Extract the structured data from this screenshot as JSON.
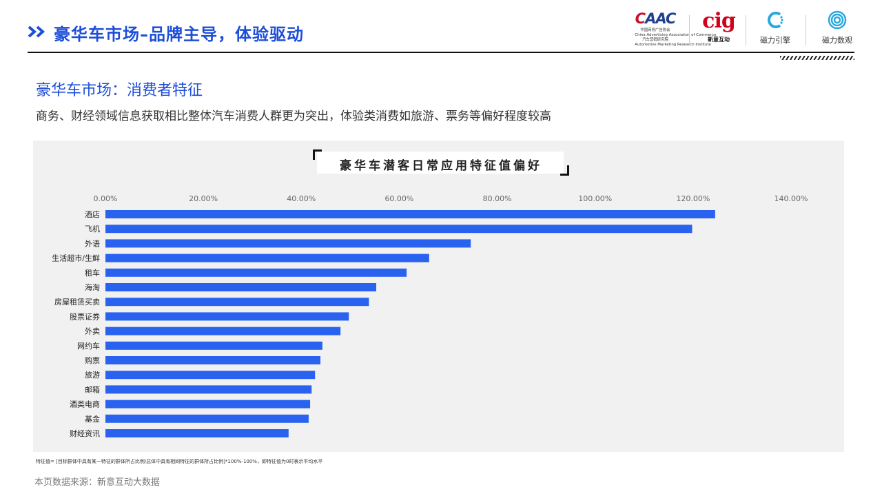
{
  "header": {
    "title": "豪华车市场–品牌主导，体验驱动",
    "logos": {
      "caac": {
        "word_c": "C",
        "word_a": "AAC",
        "line1": "中国商务广告协会",
        "line2": "China Advertising Association of Commerce",
        "line3": "汽车营销研究院",
        "line4": "Automotive Marketing Research Institute"
      },
      "cig": {
        "word": "cig",
        "label": "新意互动"
      },
      "ciyin": {
        "label": "磁力引擎",
        "icon": "ciyin-logo-icon"
      },
      "cishu": {
        "label": "磁力数观",
        "icon": "cishu-logo-icon"
      }
    }
  },
  "section": {
    "title": "豪华车市场：消费者特征",
    "subtitle": "商务、财经领域信息获取相比整体汽车消费人群更为突出，体验类消费如旅游、票务等偏好程度较高"
  },
  "chart_data": {
    "type": "bar",
    "orientation": "horizontal",
    "title": "豪华车潜客日常应用特征值偏好",
    "categories": [
      "酒店",
      "飞机",
      "外语",
      "生活超市/生鲜",
      "租车",
      "海淘",
      "房屋租赁买卖",
      "股票证券",
      "外卖",
      "网约车",
      "购票",
      "旅游",
      "邮箱",
      "酒类电商",
      "基金",
      "财经资讯"
    ],
    "values": [
      124.5,
      119.8,
      74.6,
      66.1,
      61.5,
      55.3,
      53.8,
      49.7,
      48.0,
      44.3,
      43.9,
      42.8,
      42.1,
      41.8,
      41.5,
      37.4
    ],
    "xlim": [
      0,
      140
    ],
    "xticks": [
      0,
      20,
      40,
      60,
      80,
      100,
      120,
      140
    ],
    "tick_labels": [
      "0.00%",
      "20.00%",
      "40.00%",
      "60.00%",
      "80.00%",
      "100.00%",
      "120.00%",
      "140.00%"
    ],
    "axis_position": "top",
    "grid": false,
    "bar_color": "#2a62f0"
  },
  "footnote": "特征值= [目标群体中具有某一特征的群体所占比例/总体中具有相同特征的群体所占比例]*100%-100%，即特征值为0时表示平均水平",
  "source": "本页数据来源：新意互动大数据",
  "colors": {
    "accent": "#1d4ed8",
    "bar": "#2a62f0",
    "panel": "#f1f1f1"
  }
}
